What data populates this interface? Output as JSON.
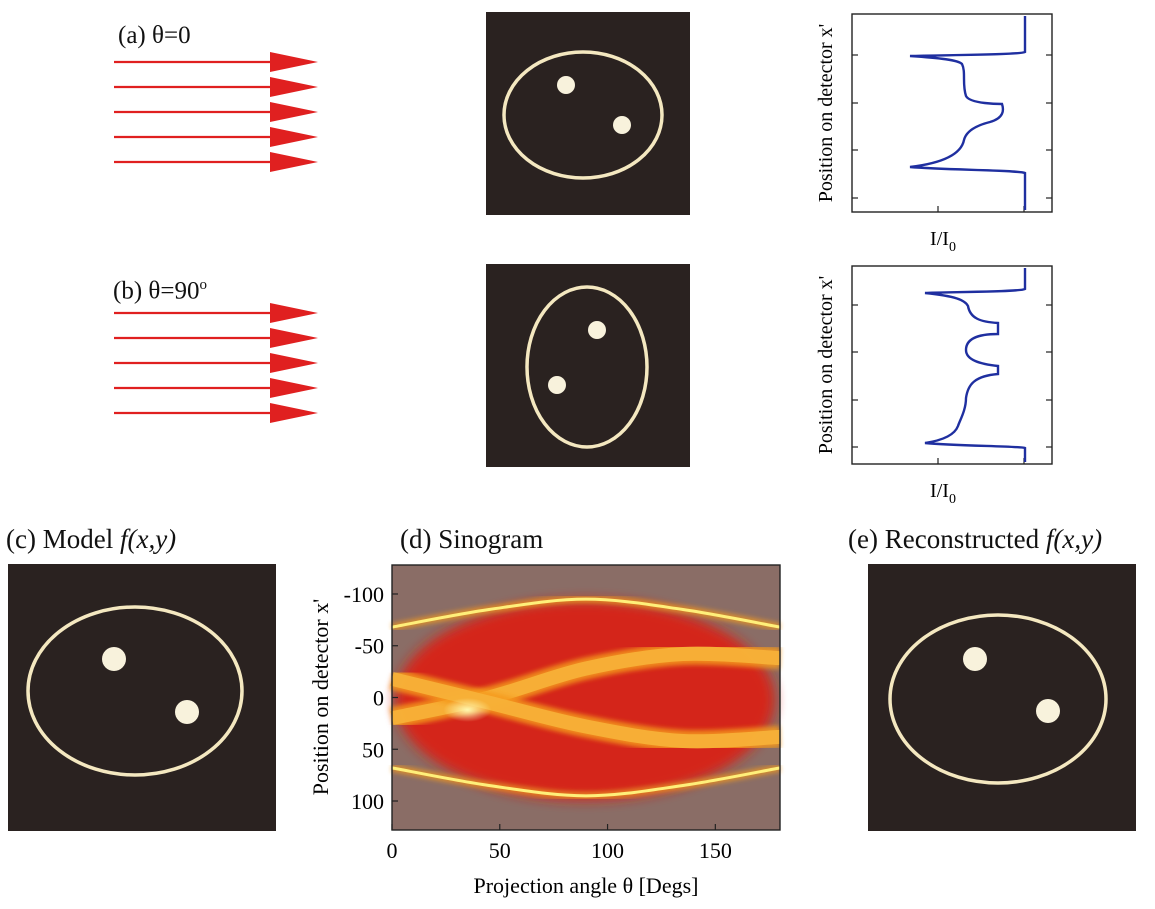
{
  "panels": {
    "a": {
      "label": "(a) θ=0"
    },
    "b": {
      "label_prefix": "(b) θ=90",
      "label_sup": "o"
    },
    "c": {
      "label": "(c) Model",
      "label_func": "f(x,y)"
    },
    "d": {
      "label": "(d) Sinogram"
    },
    "e": {
      "label": "(e) Reconstructed",
      "label_func": "f(x,y)"
    }
  },
  "profile_axes": {
    "ylabel": "Position on detector x'",
    "xlabel_main": "I/I",
    "xlabel_sub": "0"
  },
  "chart_data": {
    "type": "heatmap",
    "title": "(d) Sinogram",
    "xlabel": "Projection angle θ [Degs]",
    "ylabel": "Position on detector x'",
    "xlim": [
      0,
      180
    ],
    "ylim": [
      -128,
      128
    ],
    "y_inverted": true,
    "xticks": [
      "0",
      "50",
      "100",
      "150"
    ],
    "yticks": [
      "-100",
      "-50",
      "0",
      "50",
      "100"
    ],
    "xtick_values": [
      0,
      50,
      100,
      150
    ],
    "ytick_values": [
      -100,
      -50,
      0,
      50,
      100
    ],
    "colormap": [
      "#d92012",
      "#f59a1c",
      "#ffef7a"
    ],
    "background_color": "#8a6d66",
    "curves": [
      {
        "theta": [
          0,
          45,
          90,
          135,
          180
        ],
        "x": [
          -68,
          -85,
          -95,
          -85,
          -68
        ]
      },
      {
        "theta": [
          0,
          45,
          90,
          135,
          180
        ],
        "x": [
          68,
          85,
          95,
          85,
          68
        ]
      },
      {
        "theta": [
          0,
          45,
          90,
          135,
          180
        ],
        "x": [
          20,
          0,
          -28,
          -42,
          -38
        ]
      },
      {
        "theta": [
          0,
          45,
          90,
          135,
          180
        ],
        "x": [
          -18,
          5,
          28,
          42,
          38
        ]
      }
    ],
    "bright_spot": {
      "theta": 35,
      "x": 12
    }
  }
}
